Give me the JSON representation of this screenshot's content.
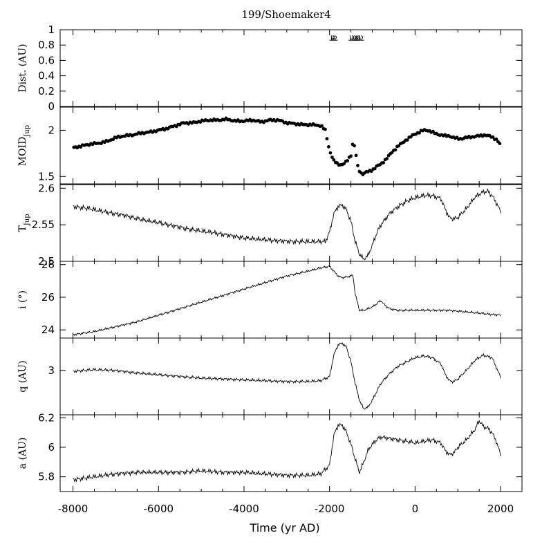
{
  "figure": {
    "title": "199/Shoemaker4",
    "xlabel": "Time (yr AD)",
    "xlim": [
      -8300,
      2500
    ],
    "x_ticks": [
      -8000,
      -6000,
      -4000,
      -2000,
      0,
      2000
    ],
    "x_tick_labels": [
      "-8000",
      "-6000",
      "-4000",
      "-2000",
      "0",
      "2000"
    ]
  },
  "chart_data": [
    {
      "type": "scatter",
      "panel": "distance",
      "ylabel": "Dist. (AU)",
      "ylim": [
        0,
        1
      ],
      "y_ticks": [
        0,
        0.2,
        0.4,
        0.6,
        0.8,
        1
      ],
      "y_tick_labels": [
        "0",
        "0.2",
        "0.4",
        "0.6",
        "0.8",
        "1"
      ],
      "planet_symbol": "♃",
      "encounters_x": [
        -1960,
        -1940,
        -1430,
        -1410,
        -1390,
        -1370,
        -1350
      ]
    },
    {
      "type": "scatter",
      "panel": "moid",
      "ylabel_main": "MOID",
      "ylabel_sub": "Jup",
      "ylim": [
        1.42,
        2.25
      ],
      "y_ticks": [
        1.5,
        2
      ],
      "y_tick_labels": [
        "1.5",
        "2"
      ],
      "x": [
        -8000,
        -7800,
        -7600,
        -7400,
        -7200,
        -7000,
        -6800,
        -6600,
        -6400,
        -6200,
        -6000,
        -5800,
        -5600,
        -5400,
        -5200,
        -5000,
        -4800,
        -4600,
        -4400,
        -4200,
        -4000,
        -3800,
        -3600,
        -3400,
        -3200,
        -3000,
        -2800,
        -2600,
        -2400,
        -2200,
        -2100,
        -2000,
        -1900,
        -1800,
        -1700,
        -1600,
        -1500,
        -1450,
        -1400,
        -1350,
        -1300,
        -1250,
        -1200,
        -1150,
        -1100,
        -1000,
        -900,
        -800,
        -700,
        -600,
        -500,
        -400,
        -300,
        -200,
        -100,
        0,
        100,
        200,
        300,
        400,
        500,
        600,
        700,
        800,
        900,
        1000,
        1100,
        1200,
        1300,
        1400,
        1500,
        1600,
        1700,
        1800,
        1900,
        2000
      ],
      "y": [
        1.81,
        1.83,
        1.85,
        1.86,
        1.88,
        1.92,
        1.94,
        1.95,
        1.97,
        1.98,
        2.0,
        2.02,
        2.05,
        2.08,
        2.08,
        2.1,
        2.11,
        2.11,
        2.12,
        2.1,
        2.1,
        2.11,
        2.09,
        2.11,
        2.11,
        2.08,
        2.07,
        2.06,
        2.06,
        2.05,
        2.0,
        1.78,
        1.67,
        1.63,
        1.63,
        1.66,
        1.73,
        1.88,
        1.8,
        1.62,
        1.56,
        1.53,
        1.53,
        1.55,
        1.55,
        1.57,
        1.61,
        1.63,
        1.68,
        1.73,
        1.78,
        1.83,
        1.86,
        1.9,
        1.93,
        1.96,
        1.98,
        2.0,
        2.0,
        1.98,
        1.96,
        1.95,
        1.94,
        1.94,
        1.92,
        1.91,
        1.91,
        1.92,
        1.93,
        1.93,
        1.94,
        1.95,
        1.94,
        1.93,
        1.9,
        1.84
      ]
    },
    {
      "type": "line",
      "panel": "tisserand",
      "ylabel_main": "T",
      "ylabel_sub": "Jup",
      "ylim": [
        2.5,
        2.605
      ],
      "y_ticks": [
        2.5,
        2.55,
        2.6
      ],
      "y_tick_labels": [
        "2.5",
        "2.55",
        "2.6"
      ],
      "x": [
        -8000,
        -7600,
        -7200,
        -6800,
        -6400,
        -6000,
        -5600,
        -5200,
        -4800,
        -4400,
        -4000,
        -3600,
        -3200,
        -2800,
        -2400,
        -2100,
        -2000,
        -1900,
        -1800,
        -1700,
        -1600,
        -1500,
        -1400,
        -1300,
        -1200,
        -1100,
        -1000,
        -900,
        -800,
        -600,
        -400,
        -200,
        0,
        200,
        400,
        600,
        700,
        800,
        900,
        1000,
        1200,
        1400,
        1600,
        1700,
        1800,
        1900,
        2000
      ],
      "y": [
        2.575,
        2.572,
        2.567,
        2.563,
        2.557,
        2.553,
        2.548,
        2.543,
        2.54,
        2.536,
        2.532,
        2.53,
        2.528,
        2.527,
        2.527,
        2.527,
        2.54,
        2.565,
        2.575,
        2.577,
        2.57,
        2.555,
        2.527,
        2.51,
        2.503,
        2.508,
        2.522,
        2.538,
        2.55,
        2.565,
        2.575,
        2.582,
        2.587,
        2.59,
        2.59,
        2.586,
        2.572,
        2.56,
        2.558,
        2.56,
        2.572,
        2.588,
        2.595,
        2.596,
        2.59,
        2.58,
        2.568
      ]
    },
    {
      "type": "line",
      "panel": "inclination",
      "ylabel": "i (°)",
      "ylim": [
        23.5,
        28.2
      ],
      "y_ticks": [
        24,
        26,
        28
      ],
      "y_tick_labels": [
        "24",
        "26",
        "28"
      ],
      "x": [
        -8000,
        -7500,
        -7000,
        -6500,
        -6000,
        -5500,
        -5000,
        -4500,
        -4000,
        -3500,
        -3000,
        -2500,
        -2200,
        -2000,
        -1900,
        -1800,
        -1700,
        -1600,
        -1500,
        -1450,
        -1400,
        -1300,
        -1200,
        -1100,
        -1000,
        -900,
        -800,
        -700,
        -600,
        -400,
        -200,
        0,
        200,
        400,
        600,
        800,
        1000,
        1200,
        1400,
        1600,
        1800,
        2000
      ],
      "y": [
        23.7,
        23.9,
        24.2,
        24.5,
        24.9,
        25.3,
        25.7,
        26.1,
        26.5,
        26.9,
        27.3,
        27.6,
        27.8,
        27.9,
        27.6,
        27.3,
        27.2,
        27.25,
        27.3,
        27.35,
        26.2,
        25.2,
        25.2,
        25.3,
        25.4,
        25.6,
        25.8,
        25.5,
        25.3,
        25.2,
        25.2,
        25.2,
        25.2,
        25.2,
        25.2,
        25.2,
        25.15,
        25.1,
        25.05,
        25.0,
        24.95,
        24.9
      ]
    },
    {
      "type": "line",
      "panel": "perihelion",
      "ylabel": "q (AU)",
      "ylim": [
        2.48,
        3.38
      ],
      "y_ticks": [
        3
      ],
      "y_tick_labels": [
        "3"
      ],
      "x": [
        -8000,
        -7500,
        -7000,
        -6500,
        -6000,
        -5500,
        -5000,
        -4500,
        -4000,
        -3500,
        -3000,
        -2500,
        -2200,
        -2000,
        -1900,
        -1800,
        -1700,
        -1600,
        -1500,
        -1400,
        -1300,
        -1200,
        -1100,
        -1000,
        -900,
        -800,
        -600,
        -400,
        -200,
        0,
        200,
        400,
        600,
        700,
        800,
        900,
        1000,
        1200,
        1400,
        1600,
        1800,
        2000
      ],
      "y": [
        2.99,
        3.01,
        3.0,
        2.97,
        2.95,
        2.93,
        2.91,
        2.9,
        2.89,
        2.88,
        2.87,
        2.87,
        2.88,
        2.93,
        3.18,
        3.3,
        3.32,
        3.27,
        3.1,
        2.85,
        2.65,
        2.55,
        2.57,
        2.65,
        2.75,
        2.85,
        2.96,
        3.05,
        3.1,
        3.15,
        3.17,
        3.15,
        3.08,
        2.96,
        2.88,
        2.87,
        2.9,
        3.0,
        3.12,
        3.18,
        3.15,
        2.92
      ]
    },
    {
      "type": "line",
      "panel": "semimajor",
      "ylabel": "a (AU)",
      "ylim": [
        5.7,
        6.22
      ],
      "y_ticks": [
        5.8,
        6,
        6.2
      ],
      "y_tick_labels": [
        "5.8",
        "6",
        "6.2"
      ],
      "x": [
        -8000,
        -7500,
        -7000,
        -6500,
        -6000,
        -5500,
        -5000,
        -4500,
        -4000,
        -3500,
        -3000,
        -2500,
        -2200,
        -2000,
        -1900,
        -1800,
        -1700,
        -1600,
        -1500,
        -1400,
        -1300,
        -1200,
        -1100,
        -1000,
        -900,
        -800,
        -600,
        -400,
        -200,
        0,
        200,
        400,
        600,
        700,
        800,
        900,
        1000,
        1200,
        1400,
        1500,
        1600,
        1700,
        1800,
        1900,
        2000
      ],
      "y": [
        5.78,
        5.8,
        5.82,
        5.83,
        5.83,
        5.83,
        5.84,
        5.83,
        5.83,
        5.82,
        5.81,
        5.81,
        5.82,
        5.88,
        6.08,
        6.15,
        6.15,
        6.1,
        6.02,
        5.92,
        5.83,
        5.9,
        5.98,
        6.02,
        6.05,
        6.07,
        6.06,
        6.05,
        6.04,
        6.03,
        6.04,
        6.05,
        6.03,
        5.98,
        5.95,
        5.96,
        6.0,
        6.05,
        6.12,
        6.18,
        6.14,
        6.13,
        6.1,
        6.04,
        5.95
      ]
    }
  ]
}
